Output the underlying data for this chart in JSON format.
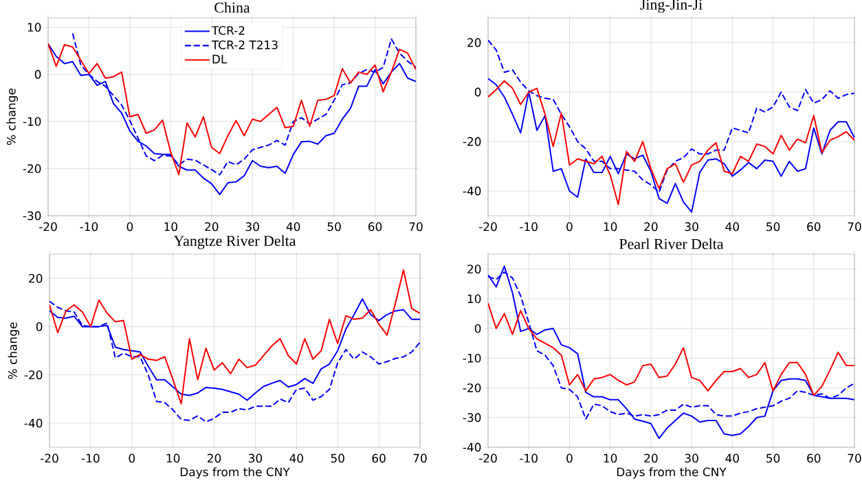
{
  "chart_data": [
    {
      "type": "line",
      "title": "China",
      "ylabel": "% change",
      "x": [
        -20,
        -18,
        -16,
        -14,
        -12,
        -10,
        -8,
        -6,
        -4,
        -2,
        0,
        2,
        4,
        6,
        8,
        10,
        12,
        14,
        16,
        18,
        20,
        22,
        24,
        26,
        28,
        30,
        32,
        34,
        36,
        38,
        40,
        42,
        44,
        46,
        48,
        50,
        52,
        54,
        56,
        58,
        60,
        62,
        64,
        66,
        68,
        70
      ],
      "xlim": [
        -20,
        70
      ],
      "xticks": [
        -20,
        -10,
        0,
        10,
        20,
        30,
        40,
        50,
        60,
        70
      ],
      "ylim": [
        -30,
        12
      ],
      "yticks": [
        -30,
        -20,
        -10,
        0,
        10
      ],
      "grid": true,
      "legend": "top",
      "series": [
        {
          "name": "TCR-2",
          "color": "#0000ff",
          "line_style": "solid",
          "values": [
            6.5,
            3.8,
            2.3,
            2.7,
            -0.2,
            0,
            -2.3,
            -1.5,
            -6.2,
            -8.2,
            -12,
            -14.2,
            -15.2,
            -16.8,
            -17,
            -17,
            -19.5,
            -20.3,
            -20.3,
            -22,
            -23.2,
            -25.5,
            -23,
            -22.8,
            -21.5,
            -18.3,
            -19.5,
            -19.8,
            -19.5,
            -21,
            -17,
            -14.3,
            -14.2,
            -14.8,
            -13,
            -12.5,
            -9.5,
            -7.2,
            -2.5,
            -2.5,
            1,
            -2,
            0.5,
            2.3,
            -0.8,
            -1.5
          ]
        },
        {
          "name": "TCR-2 T213",
          "color": "#0000ff",
          "line_style": "dashed",
          "values": [
            null,
            null,
            null,
            8.7,
            2,
            0,
            -1.5,
            -2.5,
            -4.5,
            -6.5,
            -9.8,
            -13.5,
            -17.3,
            -18.3,
            -17.2,
            -17.3,
            -19.2,
            -18,
            -18.2,
            -19.2,
            -20.2,
            -21.3,
            -18.5,
            -19.2,
            -18,
            -16,
            -15.5,
            -15,
            -14,
            -15,
            -10,
            -9.2,
            -10.5,
            -9.5,
            -8.5,
            -5.5,
            -2.2,
            -1.8,
            0.2,
            1,
            0.5,
            1.5,
            7.5,
            4.5,
            2.8,
            1.5
          ]
        },
        {
          "name": "DL",
          "color": "#ff0000",
          "line_style": "solid",
          "values": [
            6.5,
            1.7,
            6.3,
            5.8,
            3,
            0.2,
            2.3,
            -0.8,
            -0.5,
            0.5,
            -9,
            -8.5,
            -12.5,
            -11.8,
            -9.7,
            -16.5,
            -21.3,
            -10.3,
            -13.3,
            -9,
            -15.5,
            -16.8,
            -13,
            -9.8,
            -13,
            -9.5,
            -10,
            -8.5,
            -7,
            -11.3,
            -11,
            -5.5,
            -11,
            -5.5,
            -5.3,
            -4.5,
            1.2,
            -1.8,
            0.5,
            0,
            2,
            -3.7,
            0.5,
            5.3,
            4.5,
            1
          ]
        }
      ]
    },
    {
      "type": "line",
      "title": "Jing-Jin-Ji",
      "x": [
        -20,
        -18,
        -16,
        -14,
        -12,
        -10,
        -8,
        -6,
        -4,
        -2,
        0,
        2,
        4,
        6,
        8,
        10,
        12,
        14,
        16,
        18,
        20,
        22,
        24,
        26,
        28,
        30,
        32,
        34,
        36,
        38,
        40,
        42,
        44,
        46,
        48,
        50,
        52,
        54,
        56,
        58,
        60,
        62,
        64,
        66,
        68,
        70
      ],
      "xlim": [
        -20,
        70
      ],
      "xticks": [
        -20,
        -10,
        0,
        10,
        20,
        30,
        40,
        50,
        60,
        70
      ],
      "ylim": [
        -50,
        30
      ],
      "yticks": [
        -40,
        -20,
        0,
        20
      ],
      "grid": true,
      "series": [
        {
          "color": "#0000ff",
          "line_style": "solid",
          "values": [
            5.5,
            3,
            -2,
            -9,
            -16.5,
            0,
            -15.5,
            -9.5,
            -32,
            -31,
            -40,
            -42.5,
            -27,
            -32.5,
            -32.5,
            -26,
            -33,
            -25,
            -27,
            -25.5,
            -32,
            -43,
            -45,
            -37,
            -44.5,
            -48.5,
            -32.5,
            -27.5,
            -27,
            -29,
            -34,
            -31.5,
            -28.5,
            -31,
            -27.5,
            -28,
            -34,
            -28,
            -32,
            -31,
            -14.5,
            -25,
            -15.5,
            -12,
            -12,
            -18.5
          ]
        },
        {
          "color": "#0000ff",
          "line_style": "dashed",
          "values": [
            21,
            17,
            8,
            9,
            4,
            0.5,
            -1.5,
            -2.5,
            -3,
            -9,
            -14,
            -20,
            -23,
            -28,
            -28,
            -31,
            -31,
            -31.5,
            -32,
            -35.5,
            -37.5,
            -40.5,
            -31.5,
            -28,
            -26.5,
            -23,
            -25,
            -25,
            -23.5,
            -23.5,
            -14.5,
            -15.5,
            -16.5,
            -6.5,
            -8,
            -6,
            0,
            -6,
            -7.5,
            1,
            -4.5,
            -3,
            0.5,
            -2.5,
            -1,
            -0.5
          ]
        },
        {
          "color": "#ff0000",
          "line_style": "solid",
          "values": [
            -2,
            1,
            4.5,
            1.5,
            -5,
            0,
            1.5,
            -9,
            -22,
            -8.5,
            -29.5,
            -27,
            -28,
            -29,
            -26,
            -33.5,
            -45.5,
            -24,
            -28,
            -20,
            -31,
            -39,
            -31,
            -29,
            -36.5,
            -29.5,
            -28,
            -23.5,
            -20.5,
            -32,
            -33,
            -26,
            -28,
            -21,
            -22,
            -25,
            -17.5,
            -23.5,
            -19,
            -20.5,
            -9.5,
            -24.5,
            -19.5,
            -18,
            -16,
            -19.5
          ]
        }
      ]
    },
    {
      "type": "line",
      "title": "Yangtze River Delta",
      "xlabel": "Days from the CNY",
      "ylabel": "% change",
      "x": [
        -20,
        -18,
        -16,
        -14,
        -12,
        -10,
        -8,
        -6,
        -4,
        -2,
        0,
        2,
        4,
        6,
        8,
        10,
        12,
        14,
        16,
        18,
        20,
        22,
        24,
        26,
        28,
        30,
        32,
        34,
        36,
        38,
        40,
        42,
        44,
        46,
        48,
        50,
        52,
        54,
        56,
        58,
        60,
        62,
        64,
        66,
        68,
        70
      ],
      "xlim": [
        -20,
        70
      ],
      "xticks": [
        -20,
        -10,
        0,
        10,
        20,
        30,
        40,
        50,
        60,
        70
      ],
      "ylim": [
        -50,
        30
      ],
      "yticks": [
        -40,
        -20,
        0,
        20
      ],
      "grid": true,
      "series": [
        {
          "color": "#0000ff",
          "line_style": "solid",
          "values": [
            6.5,
            3.8,
            3.5,
            4.3,
            0,
            0,
            0,
            0.5,
            -8.5,
            -9.5,
            -10,
            -10.5,
            -16.5,
            -22,
            -22,
            -25,
            -28,
            -28.5,
            -27.5,
            -25.2,
            -25.5,
            -26,
            -27,
            -28,
            -30.5,
            -27.5,
            -24.8,
            -23.5,
            -22.3,
            -25,
            -24,
            -21.5,
            -23.5,
            -17.5,
            -15.5,
            -10,
            -1,
            5,
            11.5,
            5,
            2.5,
            5,
            6.5,
            7,
            3,
            3
          ]
        },
        {
          "color": "#0000ff",
          "line_style": "dashed",
          "values": [
            10.5,
            8,
            6.5,
            6,
            0.5,
            0,
            0,
            1.5,
            -13,
            -11,
            -12.5,
            -12.5,
            -20,
            -31,
            -31.5,
            -34.5,
            -38.5,
            -38.8,
            -37,
            -39.5,
            -38,
            -35.5,
            -35.5,
            -34,
            -34.5,
            -33,
            -33,
            -33,
            -30,
            -31.5,
            -26,
            -25.5,
            -30.5,
            -29,
            -26,
            -15,
            -9.5,
            -13.5,
            -10.5,
            -12.5,
            -15.5,
            -14.5,
            -13.2,
            -12.5,
            -10.5,
            -6.5
          ]
        },
        {
          "color": "#ff0000",
          "line_style": "solid",
          "values": [
            9,
            -2.5,
            6.5,
            9,
            6,
            0,
            11,
            5.5,
            2,
            2.5,
            -13.5,
            -11.5,
            -13.5,
            -14,
            -12.5,
            -22,
            -32,
            -5,
            -22,
            -9,
            -18,
            -15,
            -19.5,
            -13.5,
            -17,
            -16,
            -12,
            -8,
            -5,
            -12,
            -15.5,
            -5,
            -13.5,
            -10,
            3,
            -7,
            4.5,
            3,
            3.5,
            7,
            1,
            -3.5,
            9.5,
            23.5,
            7.5,
            5.5
          ]
        }
      ]
    },
    {
      "type": "line",
      "title": "Pearl River Delta",
      "xlabel": "Days from the CNY",
      "x": [
        -20,
        -18,
        -16,
        -14,
        -12,
        -10,
        -8,
        -6,
        -4,
        -2,
        0,
        2,
        4,
        6,
        8,
        10,
        12,
        14,
        16,
        18,
        20,
        22,
        24,
        26,
        28,
        30,
        32,
        34,
        36,
        38,
        40,
        42,
        44,
        46,
        48,
        50,
        52,
        54,
        56,
        58,
        60,
        62,
        64,
        66,
        68,
        70
      ],
      "xlim": [
        -20,
        70
      ],
      "xticks": [
        -20,
        -10,
        0,
        10,
        20,
        30,
        40,
        50,
        60,
        70
      ],
      "ylim": [
        -40,
        25
      ],
      "yticks": [
        -40,
        -30,
        -20,
        -10,
        0,
        10,
        20
      ],
      "grid": true,
      "series": [
        {
          "color": "#0000ff",
          "line_style": "solid",
          "values": [
            18,
            14,
            21,
            12,
            -1,
            0,
            -2,
            -0.5,
            0,
            -5.5,
            -6.5,
            -8.5,
            -21.5,
            -23,
            -23,
            -24,
            -24,
            -27,
            -30.5,
            -31.2,
            -32,
            -37,
            -33.5,
            -31,
            -28.5,
            -29.5,
            -31.5,
            -31,
            -31,
            -35.5,
            -36,
            -35.5,
            -33,
            -30,
            -29.5,
            -21,
            -17.5,
            -17,
            -17,
            -17.5,
            -22.5,
            -23,
            -23.5,
            -23.5,
            -23.5,
            -24
          ]
        },
        {
          "color": "#0000ff",
          "line_style": "dashed",
          "values": [
            17.5,
            16.5,
            19,
            17,
            11,
            2,
            -7.5,
            -9,
            -12.5,
            -20,
            -20.5,
            -23,
            -30.5,
            -25.5,
            -26,
            -28,
            -29,
            -28.5,
            -29.5,
            -29,
            -29.5,
            -29,
            -27.5,
            -27.5,
            -25.5,
            -26.5,
            -26,
            -26,
            -29,
            -29.5,
            -29.5,
            -28.5,
            -28,
            -27,
            -26.5,
            -26,
            -24.5,
            -23.5,
            -21,
            -21.5,
            -22.5,
            -22,
            -23.5,
            -22.5,
            -20,
            -18.5
          ]
        },
        {
          "color": "#ff0000",
          "line_style": "solid",
          "values": [
            8.5,
            0,
            5,
            -2,
            6,
            0,
            -3.5,
            -5,
            -6.5,
            -9,
            -19,
            -15.5,
            -21,
            -17,
            -16.5,
            -15.5,
            -17.5,
            -19,
            -18,
            -12.5,
            -12,
            -16.5,
            -16,
            -12,
            -6.5,
            -16.5,
            -17.5,
            -21,
            -17.5,
            -14.5,
            -14.5,
            -13.5,
            -16.5,
            -15.5,
            -11.5,
            -21,
            -15.5,
            -11.5,
            -11.5,
            -15.5,
            -22.5,
            -19.5,
            -14,
            -8,
            -12.5,
            -12.5
          ]
        }
      ]
    }
  ]
}
